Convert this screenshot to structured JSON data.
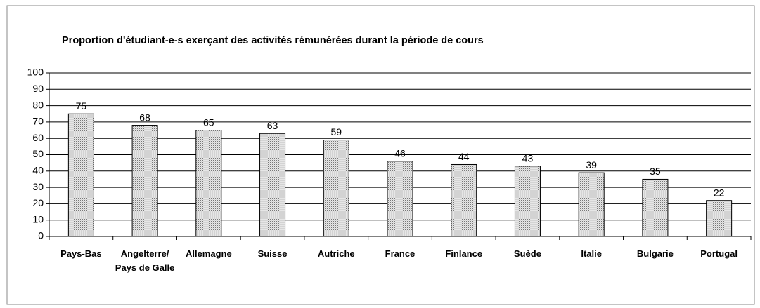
{
  "chart_data": {
    "type": "bar",
    "title": "Proportion d'étudiant-e-s exerçant des activités rémunérées durant la période de cours",
    "categories": [
      "Pays-Bas",
      "Angelterre/ Pays de Galle",
      "Allemagne",
      "Suisse",
      "Autriche",
      "France",
      "Finlance",
      "Suède",
      "Italie",
      "Bulgarie",
      "Portugal"
    ],
    "values": [
      75,
      68,
      65,
      63,
      59,
      46,
      44,
      43,
      39,
      35,
      22
    ],
    "color": "#c8c8c8",
    "ylim": [
      0,
      100
    ],
    "yticks": [
      0,
      10,
      20,
      30,
      40,
      50,
      60,
      70,
      80,
      90,
      100
    ],
    "grid": true
  }
}
